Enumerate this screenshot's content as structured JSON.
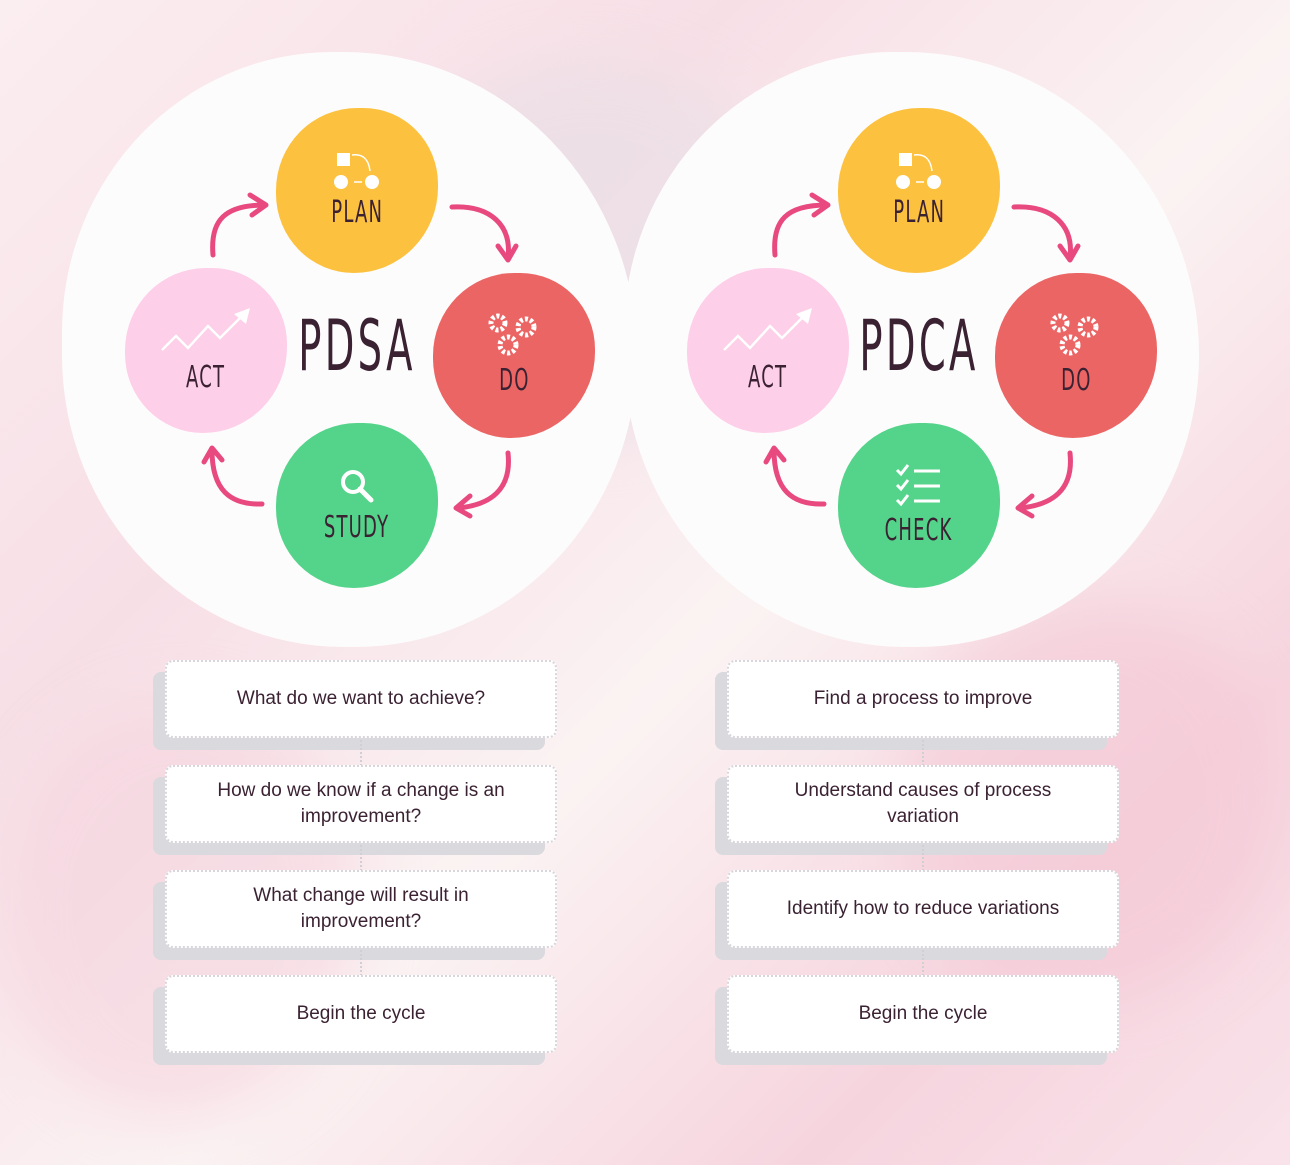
{
  "colors": {
    "plan": "#fcc13e",
    "do": "#ec6565",
    "study": "#54d38a",
    "act": "#fdcfe8",
    "arrow": "#e84a7f",
    "text": "#3b2233"
  },
  "panels": [
    {
      "title": "PDSA",
      "nodes": {
        "plan": "PLAN",
        "do": "DO",
        "third": "STUDY",
        "act": "ACT"
      },
      "third_icon": "magnifier-icon",
      "steps": [
        "What do we want to achieve?",
        "How do we know if a change is an improvement?",
        "What change will result in improvement?",
        "Begin the cycle"
      ]
    },
    {
      "title": "PDCA",
      "nodes": {
        "plan": "PLAN",
        "do": "DO",
        "third": "CHECK",
        "act": "ACT"
      },
      "third_icon": "checklist-icon",
      "steps": [
        "Find a process to improve",
        "Understand causes of process variation",
        "Identify how to reduce variations",
        "Begin the cycle"
      ]
    }
  ]
}
